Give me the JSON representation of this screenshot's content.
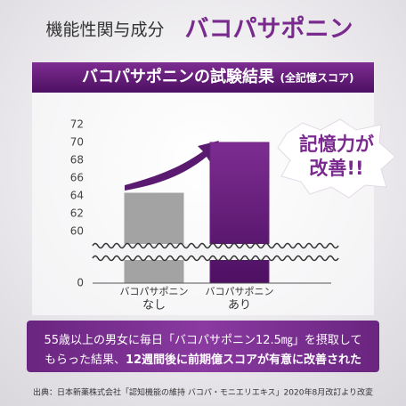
{
  "header": {
    "lead": "機能性関与成分",
    "name": "バコパサポニン"
  },
  "banner": {
    "title": "バコパサポニンの試験結果",
    "note": "(全記憶スコア)"
  },
  "bubble": {
    "lines": [
      "記憶力が",
      "改善!!"
    ]
  },
  "chart_data": {
    "type": "bar",
    "categories": [
      [
        "バコパサポニン",
        "なし"
      ],
      [
        "バコパサポニン",
        "あり"
      ]
    ],
    "values": [
      64.3,
      70
    ],
    "colors": [
      "#a3a3a3",
      "#6e1f82"
    ],
    "ylim": [
      60,
      72
    ],
    "yticks": [
      72,
      70,
      68,
      66,
      64,
      62,
      60,
      0
    ],
    "axis_break": true
  },
  "summary": {
    "lines": [
      [
        "55歳以上の男女に毎日「バコパサポニン12.5㎎」を摂取して"
      ],
      [
        "もらった結果、",
        "12週間後に前期億スコアが有意に改善された"
      ]
    ]
  },
  "footer": "出典：日本新薬株式会社「認知機能の維持 バコパ・モニエリエキス」2020年8月改訂より改変"
}
